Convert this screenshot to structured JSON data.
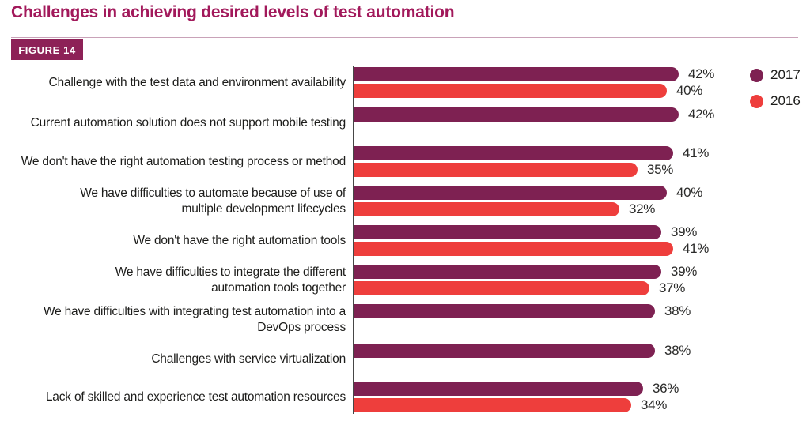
{
  "page": {
    "title": "Challenges in achieving desired levels of test automation",
    "figure_label": "FIGURE 14"
  },
  "chart_data": {
    "type": "bar",
    "orientation": "horizontal",
    "value_format": "percent",
    "grid": false,
    "legend_position": "top-right",
    "xlim": [
      0,
      45
    ],
    "categories": [
      [
        "Challenge with the test data and environment availability"
      ],
      [
        "Current automation solution does not support mobile testing"
      ],
      [
        "We don't have the right automation testing process or method"
      ],
      [
        "We have difficulties to automate because of use of",
        "multiple development lifecycles"
      ],
      [
        "We don't have the right automation tools"
      ],
      [
        "We have difficulties to integrate the different",
        "automation tools together"
      ],
      [
        "We have difficulties with integrating test automation into a",
        "DevOps process"
      ],
      [
        "Challenges with service virtualization"
      ],
      [
        "Lack of skilled and experience test automation resources"
      ]
    ],
    "series": [
      {
        "name": "2017",
        "color": "#7e2152",
        "values": [
          42,
          42,
          41,
          40,
          39,
          39,
          38,
          38,
          36
        ]
      },
      {
        "name": "2016",
        "color": "#ee3e3c",
        "values": [
          40,
          null,
          35,
          32,
          41,
          37,
          null,
          null,
          34
        ]
      }
    ]
  },
  "colors": {
    "title": "#a2195b",
    "figure_box_bg": "#8d2157",
    "figure_box_text": "#ffffff",
    "rule": "#c9a2b8",
    "axis": "#464646",
    "label_text": "#1d1d1b",
    "value_text": "#2b2b2a",
    "series_2017": "#7e2152",
    "series_2016": "#ee3e3c"
  }
}
